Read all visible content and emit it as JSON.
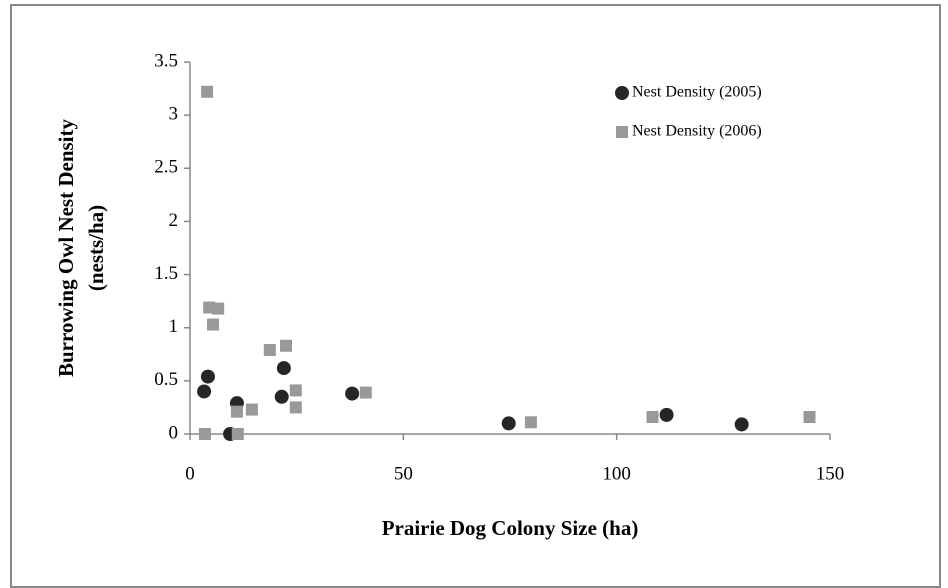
{
  "chart_data": {
    "type": "scatter",
    "xlabel": "Prairie Dog Colony Size (ha)",
    "ylabel": [
      "Burrowing Owl Nest Density",
      "(nests/ha)"
    ],
    "xlim": [
      0,
      150
    ],
    "xticks": [
      0,
      50,
      100,
      150
    ],
    "ylim": [
      0,
      3.5
    ],
    "yticks": [
      0,
      0.5,
      1,
      1.5,
      2,
      2.5,
      3,
      3.5
    ],
    "grid": false,
    "legend": "upper right",
    "series": [
      {
        "name": "Nest Density (2005)",
        "color": "#262626",
        "marker": "circle",
        "x": [
          3.3,
          4.2,
          9.4,
          11,
          21.5,
          22,
          38,
          74.7,
          111.7,
          129.3
        ],
        "values": [
          0.4,
          0.54,
          0,
          0.29,
          0.35,
          0.62,
          0.38,
          0.1,
          0.18,
          0.09
        ]
      },
      {
        "name": "Nest Density (2006)",
        "color": "#999999",
        "marker": "square",
        "x": [
          4,
          3.5,
          4.5,
          6.6,
          5.4,
          11,
          11.2,
          14.5,
          18.7,
          22.5,
          24.8,
          24.8,
          41.2,
          79.9,
          108.4,
          145.2
        ],
        "values": [
          3.22,
          0,
          1.19,
          1.18,
          1.03,
          0.21,
          0,
          0.23,
          0.79,
          0.83,
          0.41,
          0.25,
          0.39,
          0.11,
          0.16,
          0.16
        ]
      }
    ]
  }
}
